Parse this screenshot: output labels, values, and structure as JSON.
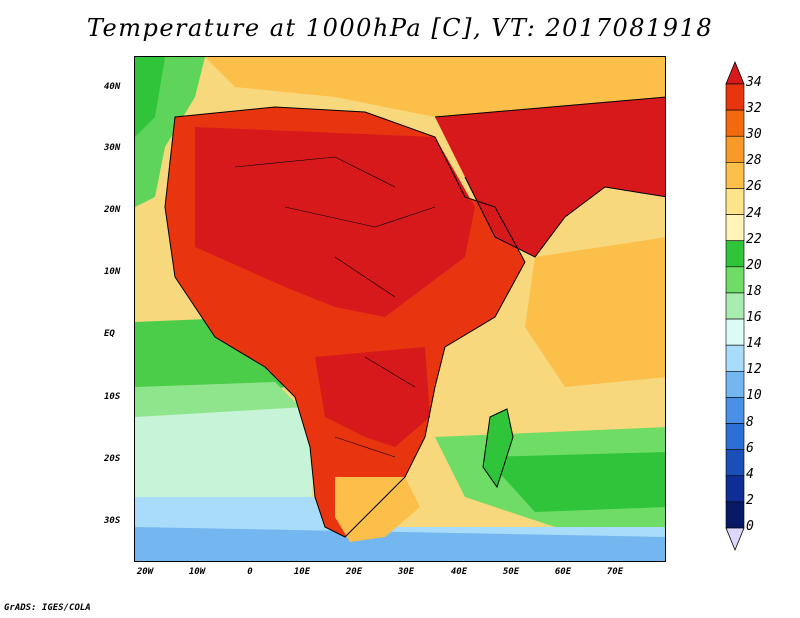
{
  "title": "Temperature at 1000hPa [C], VT: 2017081918",
  "credit": "GrADS: IGES/COLA",
  "map": {
    "region": "Africa and Middle East",
    "lat_labels": [
      "40N",
      "30N",
      "20N",
      "10N",
      "EQ",
      "10S",
      "20S",
      "30S"
    ],
    "lon_labels": [
      "20W",
      "10W",
      "0",
      "10E",
      "20E",
      "30E",
      "40E",
      "50E",
      "60E",
      "70E"
    ]
  },
  "colorbar": {
    "levels": [
      "34",
      "32",
      "30",
      "28",
      "26",
      "24",
      "22",
      "20",
      "18",
      "16",
      "14",
      "12",
      "10",
      "8",
      "6",
      "4",
      "2",
      "0"
    ],
    "colors": [
      "#d7191c",
      "#e8350f",
      "#f26a0d",
      "#f79a2a",
      "#fbbf4a",
      "#fde38a",
      "#fff3b8",
      "#2fc43a",
      "#6fdc66",
      "#a8ecb0",
      "#dcfaf6",
      "#a8dcfa",
      "#74b6ef",
      "#4a90e6",
      "#2c6fd8",
      "#1a4fb8",
      "#0e2e96",
      "#081a66",
      "#dcd8ff"
    ]
  }
}
